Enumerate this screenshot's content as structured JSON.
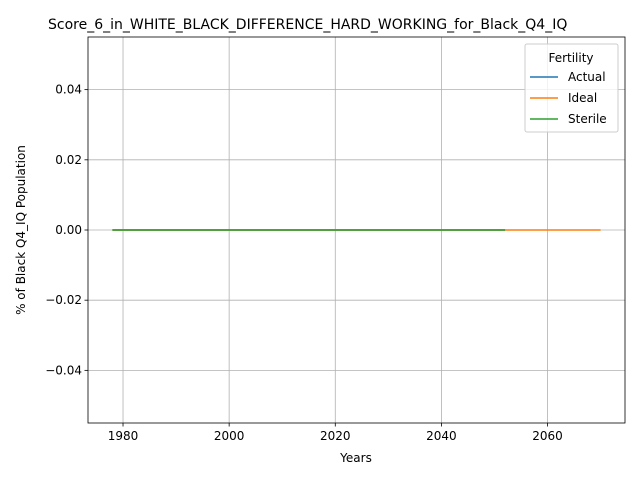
{
  "chart_data": {
    "type": "line",
    "title": "Score_6_in_WHITE_BLACK_DIFFERENCE_HARD_WORKING_for_Black_Q4_IQ",
    "xlabel": "Years",
    "ylabel": "% of Black Q4_IQ Population",
    "xlim": [
      1973.4,
      2074.6
    ],
    "ylim": [
      -0.055,
      0.055
    ],
    "grid": true,
    "x_ticks": [
      1980,
      2000,
      2020,
      2040,
      2060
    ],
    "x_tick_labels": [
      "1980",
      "2000",
      "2020",
      "2040",
      "2060"
    ],
    "y_ticks": [
      -0.04,
      -0.02,
      0.0,
      0.02,
      0.04
    ],
    "y_tick_labels": [
      "−0.04",
      "−0.02",
      "0.00",
      "0.02",
      "0.04"
    ],
    "legend": {
      "title": "Fertility",
      "position": "upper-right"
    },
    "series": [
      {
        "name": "Actual",
        "color": "#1f77b4",
        "x": [
          1978,
          2052
        ],
        "y": [
          0,
          0
        ]
      },
      {
        "name": "Ideal",
        "color": "#ff7f0e",
        "x": [
          1978,
          2070
        ],
        "y": [
          0,
          0
        ]
      },
      {
        "name": "Sterile",
        "color": "#2ca02c",
        "x": [
          1978,
          2052
        ],
        "y": [
          0,
          0
        ]
      }
    ]
  }
}
